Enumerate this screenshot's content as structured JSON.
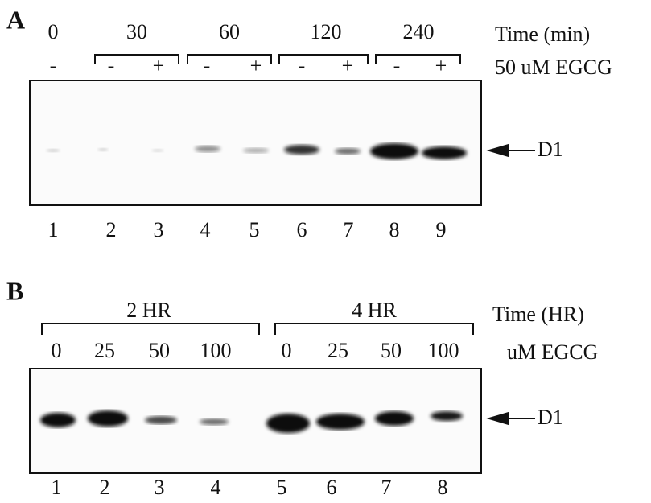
{
  "panel_a": {
    "label": "A",
    "times": [
      "0",
      "30",
      "60",
      "120",
      "240"
    ],
    "time_label": "Time (min)",
    "treatments": [
      "-",
      "-",
      "+",
      "-",
      "+",
      "-",
      "+",
      "-",
      "+"
    ],
    "treatment_label": "50 uM EGCG",
    "band_label": "D1",
    "lanes": [
      "1",
      "2",
      "3",
      "4",
      "5",
      "6",
      "7",
      "8",
      "9"
    ]
  },
  "panel_b": {
    "label": "B",
    "times": [
      "2 HR",
      "4 HR"
    ],
    "time_label": "Time (HR)",
    "doses": [
      "0",
      "25",
      "50",
      "100",
      "0",
      "25",
      "50",
      "100"
    ],
    "dose_label": "uM EGCG",
    "band_label": "D1",
    "lanes": [
      "1",
      "2",
      "3",
      "4",
      "5",
      "6",
      "7",
      "8"
    ]
  }
}
